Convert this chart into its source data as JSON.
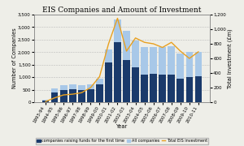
{
  "title": "EIS Companies and Amount of Investment",
  "years": [
    "1993-94",
    "1994-95",
    "1995-96",
    "1996-97",
    "1997-98",
    "1998-99",
    "1999-00",
    "2000-01",
    "2001-02",
    "2002-03",
    "2003-04",
    "2004-05",
    "2005-06",
    "2006-07",
    "2007-08",
    "2008-09",
    "2009-10",
    "2010-11"
  ],
  "first_time": [
    50,
    380,
    490,
    520,
    500,
    530,
    720,
    1600,
    2400,
    1700,
    1400,
    1100,
    1150,
    1100,
    1100,
    950,
    1000,
    1050
  ],
  "all_companies": [
    100,
    550,
    680,
    700,
    680,
    720,
    950,
    2100,
    3300,
    2850,
    2450,
    2200,
    2200,
    2200,
    2250,
    1950,
    2000,
    2000
  ],
  "total_investment": [
    10,
    60,
    100,
    110,
    130,
    200,
    350,
    800,
    1150,
    700,
    880,
    820,
    800,
    750,
    820,
    700,
    600,
    690
  ],
  "ylabel_left": "Number of Companies",
  "ylabel_right": "Total Investment (£m)",
  "xlabel": "Year",
  "ylim_left": [
    0,
    3500
  ],
  "ylim_right": [
    0,
    1200
  ],
  "yticks_left": [
    0,
    500,
    1000,
    1500,
    2000,
    2500,
    3000,
    3500
  ],
  "yticks_right": [
    0,
    200,
    400,
    600,
    800,
    1000,
    1200
  ],
  "bar_color_first": "#1a3a6b",
  "bar_color_all": "#a8c8e8",
  "line_color": "#e8a020",
  "bg_color": "#eeeee8",
  "plot_bg": "#eeeee8",
  "legend_labels": [
    "companies raising funds for the first time",
    "All companies",
    "Total EIS investment"
  ],
  "title_fontsize": 6.5,
  "axis_fontsize": 4.8,
  "tick_fontsize": 4.0,
  "legend_fontsize": 3.5
}
